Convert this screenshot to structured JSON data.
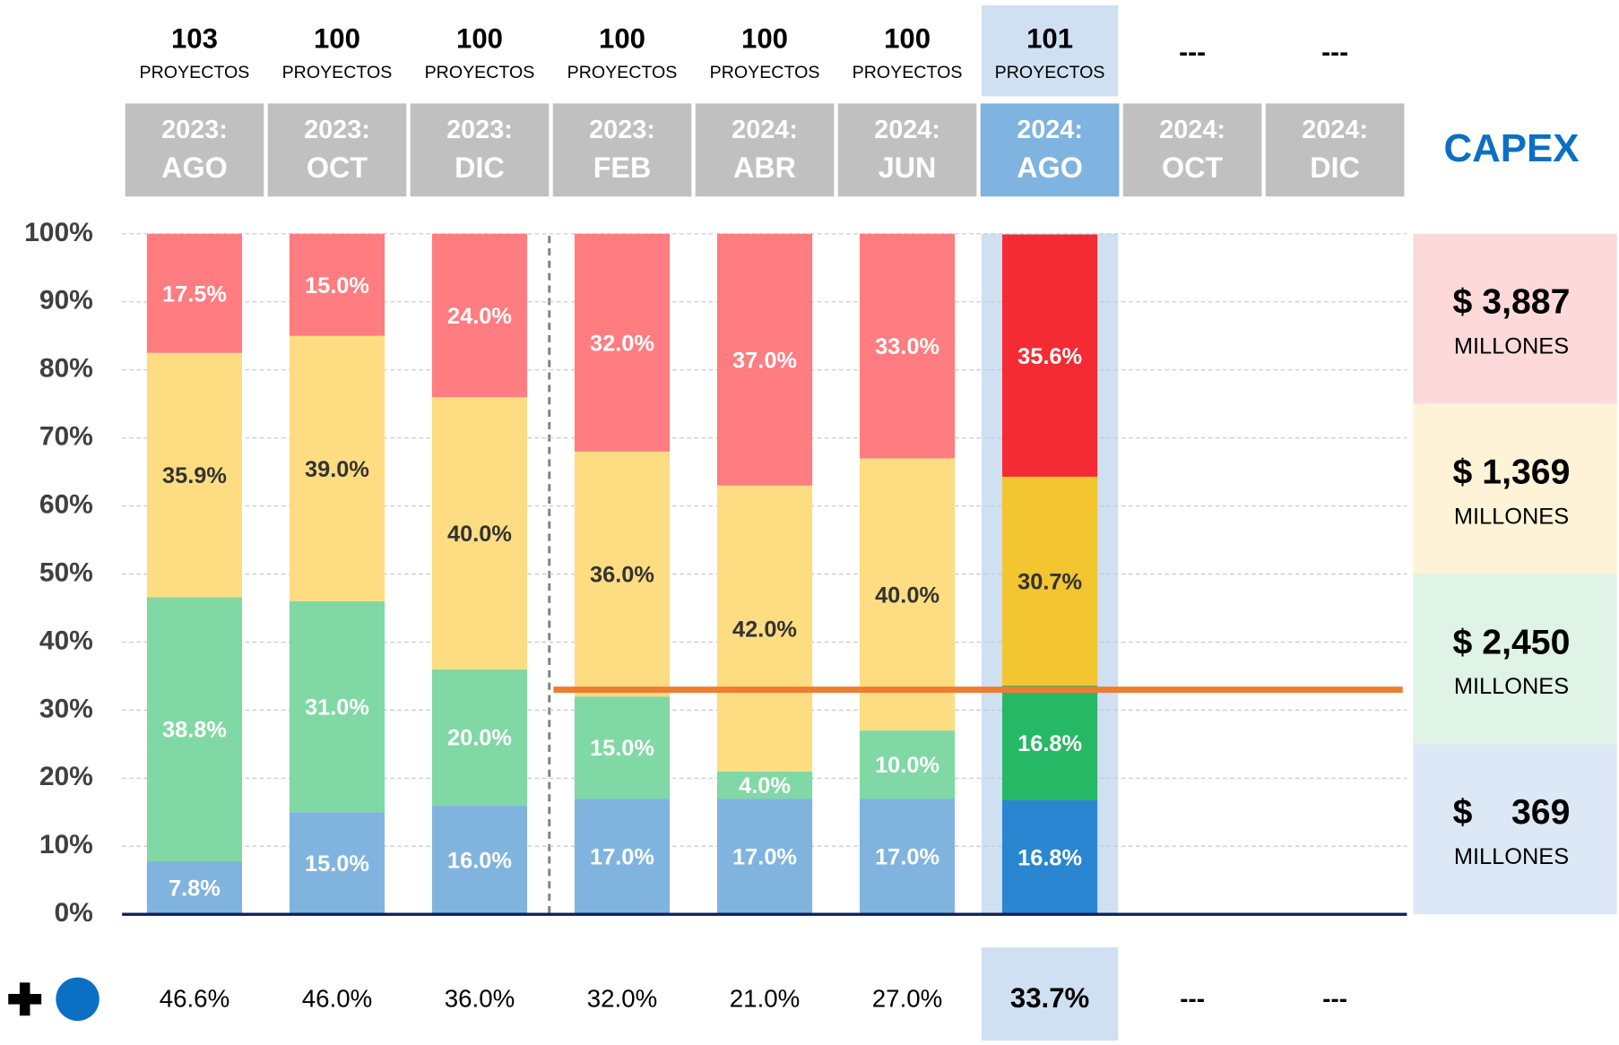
{
  "chart_data": {
    "type": "stacked_bar",
    "categories": [
      [
        "2023:",
        "AGO"
      ],
      [
        "2023:",
        "OCT"
      ],
      [
        "2023:",
        "DIC"
      ],
      [
        "2023:",
        "FEB"
      ],
      [
        "2024:",
        "ABR"
      ],
      [
        "2024:",
        "JUN"
      ],
      [
        "2024:",
        "AGO"
      ],
      [
        "2024:",
        "OCT"
      ],
      [
        "2024:",
        "DIC"
      ]
    ],
    "projects": [
      103,
      100,
      100,
      100,
      100,
      100,
      101,
      "---",
      "---"
    ],
    "projects_unit": "PROYECTOS",
    "highlight_index": 6,
    "series": [
      {
        "color": "#80b4de",
        "highlight_color": "#2a86d0",
        "text_color": "#ffffff",
        "values": [
          7.8,
          15,
          16,
          17,
          17,
          17,
          16.8,
          null,
          null
        ],
        "value_labels": [
          "7.8%",
          "15.0%",
          "16.0%",
          "17.0%",
          "17.0%",
          "17.0%",
          "16.8%",
          null,
          null
        ]
      },
      {
        "color": "#80d8a4",
        "highlight_color": "#27b866",
        "text_color": "#ffffff",
        "values": [
          38.8,
          31,
          20,
          15,
          4,
          10,
          16.8,
          null,
          null
        ],
        "value_labels": [
          "38.8%",
          "31.0%",
          "20.0%",
          "15.0%",
          "4.0%",
          "10.0%",
          "16.8%",
          null,
          null
        ]
      },
      {
        "color": "#fedd82",
        "highlight_color": "#f2c531",
        "text_color": "#333333",
        "values": [
          35.9,
          39,
          40,
          36,
          42,
          40,
          30.7,
          null,
          null
        ],
        "value_labels": [
          "35.9%",
          "39.0%",
          "40.0%",
          "36.0%",
          "42.0%",
          "40.0%",
          "30.7%",
          null,
          null
        ]
      },
      {
        "color": "#ff7c80",
        "highlight_color": "#f42b32",
        "text_color": "#ffffff",
        "values": [
          17.5,
          15,
          24,
          32,
          37,
          33,
          35.6,
          null,
          null
        ],
        "value_labels": [
          "17.5%",
          "15.0%",
          "24.0%",
          "32.0%",
          "37.0%",
          "33.0%",
          "35.6%",
          null,
          null
        ]
      }
    ],
    "ylim": [
      0,
      100
    ],
    "yticks": [
      {
        "value": 0,
        "label": "0%"
      },
      {
        "value": 10,
        "label": "10%"
      },
      {
        "value": 20,
        "label": "20%"
      },
      {
        "value": 30,
        "label": "30%"
      },
      {
        "value": 40,
        "label": "40%"
      },
      {
        "value": 50,
        "label": "50%"
      },
      {
        "value": 60,
        "label": "60%"
      },
      {
        "value": 70,
        "label": "70%"
      },
      {
        "value": 80,
        "label": "80%"
      },
      {
        "value": 90,
        "label": "90%"
      },
      {
        "value": 100,
        "label": "100%"
      }
    ],
    "grid": true,
    "reference_line": {
      "value": 33,
      "color": "#ed7d31"
    },
    "bottom_row": [
      "46.6%",
      "46.0%",
      "36.0%",
      "32.0%",
      "21.0%",
      "27.0%",
      "33.7%",
      "---",
      "---"
    ],
    "capex": {
      "title": "CAPEX",
      "items": [
        {
          "amount": "$ 3,887",
          "unit": "MILLONES",
          "color": "#fdd9da"
        },
        {
          "amount": "$ 1,369",
          "unit": "MILLONES",
          "color": "#fef3d6"
        },
        {
          "amount": "$ 2,450",
          "unit": "MILLONES",
          "color": "#dff3e6"
        },
        {
          "amount": "$    369",
          "unit": "MILLONES",
          "color": "#dce8f5"
        }
      ]
    }
  }
}
